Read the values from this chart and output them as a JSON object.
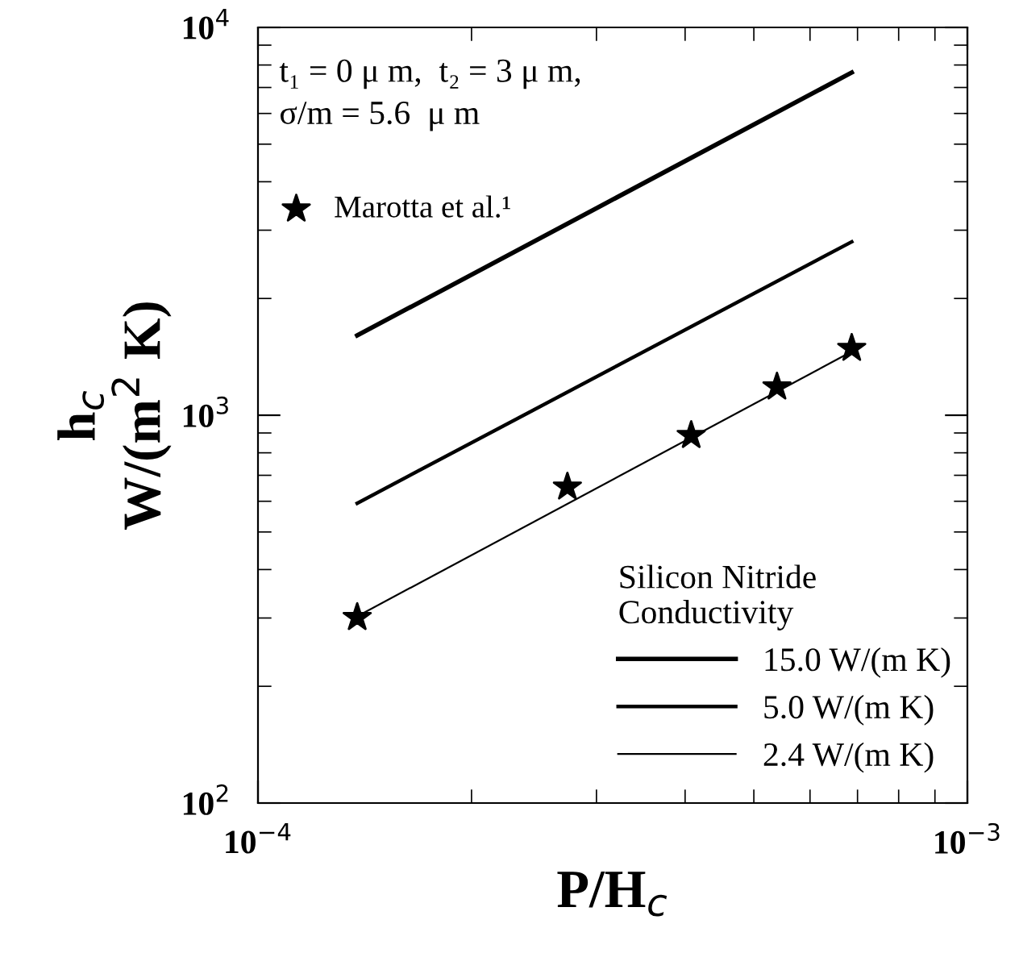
{
  "chart_data": {
    "type": "line",
    "xlabel": "P/H$_{c}$",
    "ylabel": "h$_{c}$\nW/(m$^{2}$ K)",
    "legend_title": "Silicon Nitride\nConductivity",
    "log": "xy",
    "xlim": [
      0.0001,
      0.001
    ],
    "ylim": [
      100,
      10000
    ],
    "xticks": [
      {
        "value": 0.0001,
        "label": "10$^{−4}$"
      },
      {
        "value": 0.001,
        "label": "10$^{−3}$"
      }
    ],
    "yticks": [
      {
        "value": 100,
        "label": "10$^{2}$"
      },
      {
        "value": 1000,
        "label": "10$^{3}$"
      },
      {
        "value": 10000,
        "label": "10$^{4}$"
      }
    ],
    "annotations": [
      "t₁ = 0 μ m,  t₂ = 3 μ m,\nσ/m = 5.6  μ m"
    ],
    "legend": "bottom right",
    "grid": false,
    "series": [
      {
        "name": "15.0 W/(m K)",
        "color": "#000000",
        "x": [
          0.000138,
          0.000687
        ],
        "values": [
          1606,
          7650
        ],
        "marker": "none"
      },
      {
        "name": "5.0 W/(m K)",
        "color": "#000000",
        "x": [
          0.000138,
          0.000687
        ],
        "values": [
          593,
          2800
        ],
        "marker": "none"
      },
      {
        "name": "2.4 W/(m K)",
        "color": "#000000",
        "x": [
          0.000138,
          0.000687
        ],
        "values": [
          303,
          1459
        ],
        "marker": "none"
      },
      {
        "name": "Marotta et al.¹",
        "type": "scatter",
        "color": "#000000",
        "x": [
          0.000138,
          0.000273,
          0.000408,
          0.000539,
          0.000687
        ],
        "values": [
          301,
          653,
          887,
          1183,
          1488
        ],
        "marker": "star"
      }
    ]
  }
}
